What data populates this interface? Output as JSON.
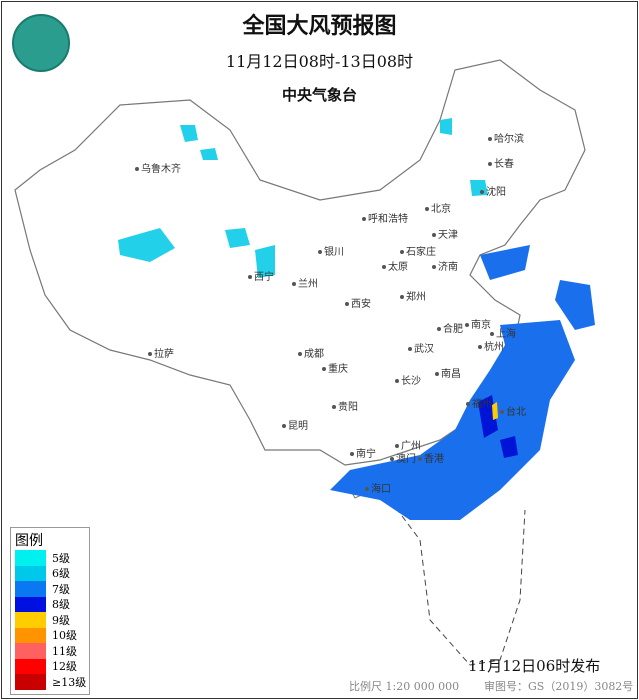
{
  "header": {
    "title": "全国大风预报图",
    "period": "11月12日08时-13日08时",
    "agency": "中央气象台"
  },
  "logo": {
    "name": "cma-logo"
  },
  "cities": [
    "乌鲁木齐",
    "哈尔滨",
    "长春",
    "沈阳",
    "北京",
    "天津",
    "呼和浩特",
    "石家庄",
    "太原",
    "济南",
    "银川",
    "西宁",
    "兰州",
    "郑州",
    "西安",
    "合肥",
    "南京",
    "上海",
    "杭州",
    "武汉",
    "成都",
    "重庆",
    "长沙",
    "南昌",
    "拉萨",
    "贵阳",
    "福州",
    "台北",
    "昆明",
    "南宁",
    "广州",
    "香港",
    "澳门",
    "海口"
  ],
  "legend": {
    "title": "图例",
    "items": [
      {
        "label": "5级",
        "color": "#00f0f0"
      },
      {
        "label": "6级",
        "color": "#00c8e8"
      },
      {
        "label": "7级",
        "color": "#0a78f0"
      },
      {
        "label": "8级",
        "color": "#0010e0"
      },
      {
        "label": "9级",
        "color": "#ffcc00"
      },
      {
        "label": "10级",
        "color": "#ff9400"
      },
      {
        "label": "11级",
        "color": "#ff6060"
      },
      {
        "label": "12级",
        "color": "#ff0000"
      },
      {
        "label": "≥13级",
        "color": "#c80000"
      }
    ]
  },
  "footer": {
    "issued": "11月12日06时发布",
    "scale": "比例尺 1:20 000 000",
    "approval": "审图号：GS（2019）3082号"
  }
}
